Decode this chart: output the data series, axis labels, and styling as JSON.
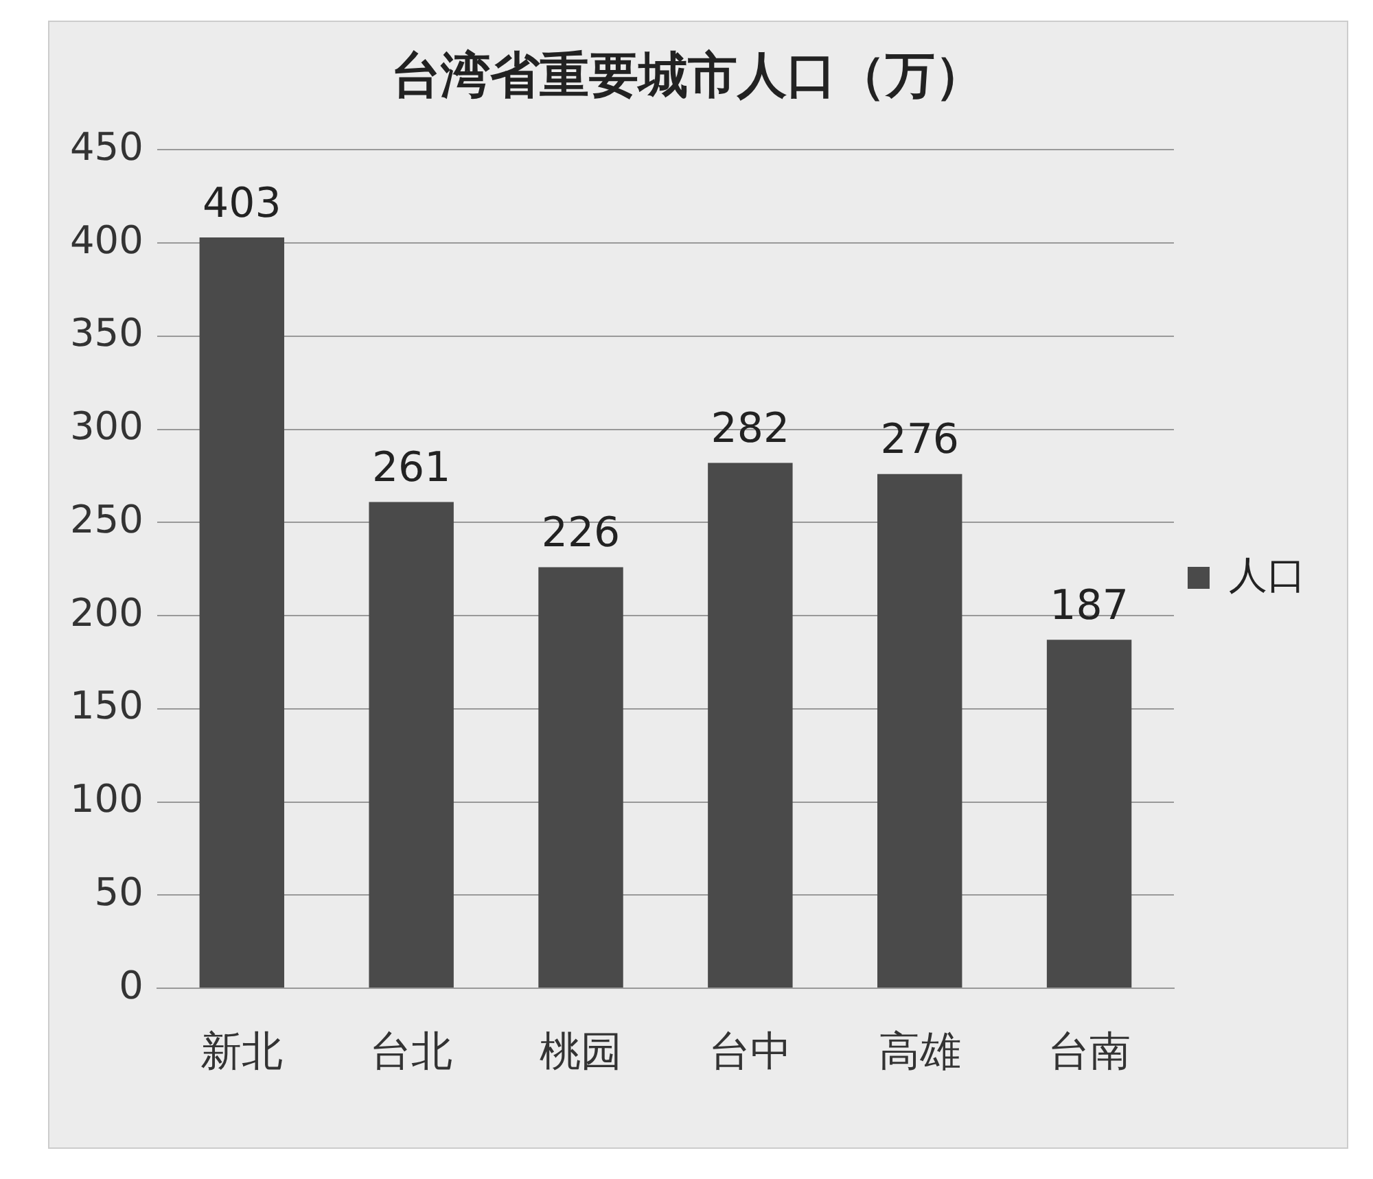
{
  "chart_data": {
    "type": "bar",
    "title": "台湾省重要城市人口（万）",
    "categories": [
      "新北",
      "台北",
      "桃园",
      "台中",
      "高雄",
      "台南"
    ],
    "series": [
      {
        "name": "人口",
        "color": "#4a4a4a",
        "values": [
          403,
          261,
          226,
          282,
          276,
          187
        ]
      }
    ],
    "ylim": [
      0,
      450
    ],
    "yticks": [
      0,
      50,
      100,
      150,
      200,
      250,
      300,
      350,
      400,
      450
    ],
    "grid": "y",
    "legend": "right",
    "data_labels": true
  }
}
